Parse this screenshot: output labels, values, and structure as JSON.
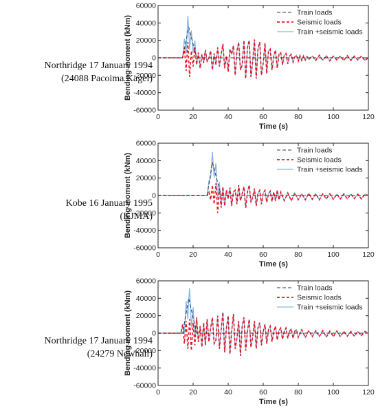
{
  "chart_data": [
    {
      "type": "line",
      "label_line1": "Northridge 17 January 1994",
      "label_line2": "(24088 Pacoima Kagel)",
      "xlabel": "Time (s)",
      "ylabel": "Bending moment (kNm)",
      "xlim": [
        0,
        120
      ],
      "ylim": [
        -60000,
        60000
      ],
      "xticks": [
        "0",
        "20",
        "40",
        "60",
        "80",
        "100",
        "120"
      ],
      "yticks": [
        "60000",
        "40000",
        "20000",
        "0",
        "-20000",
        "-40000",
        "-60000"
      ],
      "grid": false,
      "legend_position": "top-right",
      "series": [
        {
          "name": "Train loads",
          "color": "#333333",
          "style": "dashed"
        },
        {
          "name": "Seismic loads",
          "color": "#e8141c",
          "style": "dashed-thick"
        },
        {
          "name": "Train +seismic loads",
          "color": "#86b6e6",
          "style": "solid"
        }
      ],
      "train_pulse": {
        "start": 14,
        "peak_time": 17.5,
        "peak": 35000,
        "end": 22
      },
      "seismic_x": [
        0,
        14,
        15,
        16,
        17,
        18,
        19,
        20,
        21,
        22,
        23,
        24,
        25,
        26,
        27,
        28,
        29,
        30,
        31,
        32,
        33,
        34,
        35,
        36,
        37,
        38,
        39,
        40,
        41,
        42,
        43,
        44,
        45,
        46,
        47,
        48,
        49,
        50,
        51,
        52,
        53,
        54,
        55,
        56,
        57,
        58,
        59,
        60,
        61,
        62,
        63,
        64,
        65,
        66,
        67,
        68,
        69,
        70,
        71,
        72,
        73,
        74,
        75,
        76,
        77,
        78,
        79,
        80,
        81,
        82,
        83,
        84,
        85,
        86,
        88,
        90,
        92,
        94,
        96,
        98,
        100,
        102,
        104,
        106,
        108,
        110,
        112,
        114,
        116,
        118,
        120
      ],
      "seismic_y": [
        0,
        0,
        12000,
        -15000,
        18000,
        -22000,
        8000,
        -10000,
        12000,
        -8000,
        6000,
        -12000,
        4000,
        -6000,
        9000,
        -4000,
        0,
        8000,
        -14000,
        5000,
        -8000,
        12000,
        -10000,
        4000,
        16000,
        -12000,
        2000,
        -16000,
        10000,
        4000,
        14000,
        -20000,
        8000,
        18000,
        -14000,
        -8000,
        20000,
        -24000,
        12000,
        20000,
        -22000,
        -4000,
        21000,
        -24000,
        10000,
        18000,
        -20000,
        -6000,
        17000,
        -18000,
        8000,
        10000,
        -14000,
        2000,
        9000,
        -12000,
        4000,
        6000,
        -8000,
        3000,
        5000,
        -7000,
        2000,
        4000,
        -5000,
        1000,
        3000,
        -4000,
        2500,
        -3000,
        2000,
        -2500,
        1500,
        -2000,
        2000,
        -3000,
        3000,
        -3000,
        2500,
        -3500,
        2000,
        -2500,
        2000,
        -3000,
        2500,
        -3000,
        2000,
        -2500,
        2000,
        -3000,
        0
      ]
    },
    {
      "type": "line",
      "label_line1": "Kobe 16 January 1995",
      "label_line2": "(KJMA)",
      "xlabel": "Time (s)",
      "ylabel": "Bending moment (kNm)",
      "xlim": [
        0,
        120
      ],
      "ylim": [
        -60000,
        60000
      ],
      "xticks": [
        "0",
        "20",
        "40",
        "60",
        "80",
        "100",
        "120"
      ],
      "yticks": [
        "60000",
        "40000",
        "20000",
        "0",
        "-20000",
        "-40000",
        "-60000"
      ],
      "grid": false,
      "legend_position": "top-right",
      "series": [
        {
          "name": "Train loads",
          "color": "#333333",
          "style": "dashed"
        },
        {
          "name": "Seismic loads",
          "color": "#e8141c",
          "style": "dashed-thick"
        },
        {
          "name": "Train +seismic loads",
          "color": "#86b6e6",
          "style": "solid"
        }
      ],
      "train_pulse": {
        "start": 28,
        "peak_time": 31,
        "peak": 38000,
        "end": 36
      },
      "seismic_x": [
        0,
        28,
        29,
        30,
        31,
        32,
        33,
        34,
        35,
        36,
        37,
        38,
        39,
        40,
        41,
        42,
        43,
        44,
        45,
        46,
        47,
        48,
        49,
        50,
        51,
        52,
        53,
        54,
        55,
        56,
        57,
        58,
        59,
        60,
        61,
        62,
        63,
        64,
        65,
        66,
        67,
        68,
        69,
        70,
        72,
        74,
        76,
        78,
        80,
        82,
        84,
        86,
        88,
        90,
        92,
        94,
        96,
        98,
        100,
        102,
        104,
        106,
        108,
        110,
        112,
        114,
        116,
        118,
        120
      ],
      "seismic_y": [
        0,
        0,
        4000,
        -5000,
        12000,
        -10000,
        14000,
        -20000,
        8000,
        -14000,
        10000,
        -12000,
        6000,
        -4000,
        9000,
        -12000,
        4000,
        6000,
        -10000,
        12000,
        -6000,
        2000,
        10000,
        -14000,
        4000,
        12000,
        -8000,
        -2000,
        8000,
        -12000,
        2000,
        6000,
        -10000,
        3000,
        6000,
        -8000,
        2000,
        5000,
        -7000,
        4000,
        -6000,
        6000,
        -5000,
        4000,
        -6000,
        3000,
        -6000,
        3000,
        -5000,
        2000,
        -5000,
        2500,
        -4500,
        2000,
        -5000,
        2000,
        -4000,
        2000,
        -4500,
        1500,
        -4000,
        2000,
        -4000,
        1500,
        -3500,
        1500,
        -4000,
        1500,
        0
      ]
    },
    {
      "type": "line",
      "label_line1": "Northridge 17 January 1994",
      "label_line2": "(24279 Newhall)",
      "xlabel": "Time (s)",
      "ylabel": "Bending moment (kNm)",
      "xlim": [
        0,
        120
      ],
      "ylim": [
        -60000,
        60000
      ],
      "xticks": [
        "0",
        "20",
        "40",
        "60",
        "80",
        "100",
        "120"
      ],
      "yticks": [
        "60000",
        "40000",
        "20000",
        "0",
        "-20000",
        "-40000",
        "-60000"
      ],
      "grid": false,
      "legend_position": "top-right",
      "series": [
        {
          "name": "Train loads",
          "color": "#333333",
          "style": "dashed"
        },
        {
          "name": "Seismic loads",
          "color": "#e8141c",
          "style": "dashed-thick"
        },
        {
          "name": "Train +seismic loads",
          "color": "#86b6e6",
          "style": "solid"
        }
      ],
      "train_pulse": {
        "start": 14,
        "peak_time": 17.5,
        "peak": 40000,
        "end": 22
      },
      "seismic_x": [
        0,
        13,
        14,
        15,
        16,
        17,
        18,
        19,
        20,
        21,
        22,
        23,
        24,
        25,
        26,
        27,
        28,
        29,
        30,
        31,
        32,
        33,
        34,
        35,
        36,
        37,
        38,
        39,
        40,
        41,
        42,
        43,
        44,
        45,
        46,
        47,
        48,
        49,
        50,
        51,
        52,
        53,
        54,
        55,
        56,
        57,
        58,
        59,
        60,
        61,
        62,
        63,
        64,
        65,
        66,
        67,
        68,
        69,
        70,
        71,
        72,
        73,
        74,
        75,
        76,
        77,
        78,
        79,
        80,
        82,
        84,
        86,
        88,
        90,
        92,
        94,
        96,
        98,
        100,
        102,
        104,
        106,
        108,
        110,
        112,
        114,
        116,
        118,
        120
      ],
      "seismic_y": [
        0,
        0,
        10000,
        -12000,
        14000,
        -18000,
        16000,
        -20000,
        12000,
        -14000,
        18000,
        -10000,
        8000,
        -16000,
        12000,
        -14000,
        16000,
        -10000,
        6000,
        18000,
        -12000,
        -8000,
        20000,
        -18000,
        4000,
        24000,
        -22000,
        6000,
        20000,
        -24000,
        2000,
        22000,
        -18000,
        -6000,
        14000,
        -26000,
        8000,
        18000,
        -20000,
        2000,
        16000,
        -16000,
        -4000,
        14000,
        -18000,
        6000,
        12000,
        -14000,
        2000,
        10000,
        -12000,
        4000,
        8000,
        -10000,
        2000,
        8000,
        -8000,
        3000,
        6000,
        -7000,
        2000,
        6000,
        -6000,
        2000,
        5000,
        -6000,
        2000,
        4000,
        -5000,
        4000,
        -5000,
        3000,
        -4000,
        3000,
        -4000,
        3000,
        -4500,
        2500,
        -4000,
        2500,
        -4000,
        2000,
        -3500,
        2000,
        -3500,
        2000,
        -3000,
        2000,
        0
      ]
    }
  ]
}
